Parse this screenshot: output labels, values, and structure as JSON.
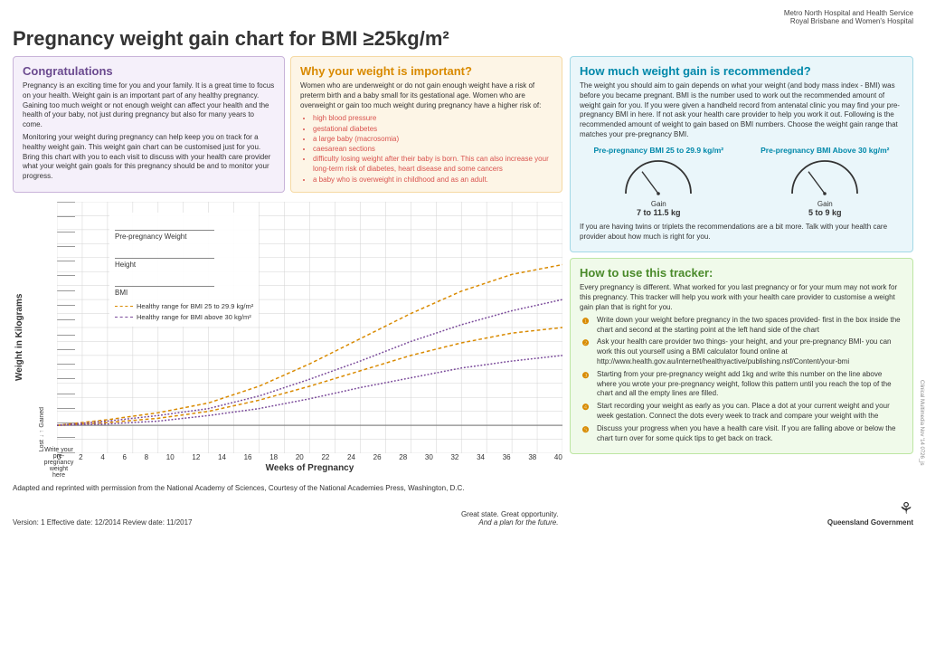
{
  "header": {
    "line1": "Metro North Hospital and Health Service",
    "line2": "Royal Brisbane and Women's Hospital"
  },
  "title": "Pregnancy weight gain chart for BMI ≥25kg/m²",
  "congrats": {
    "heading": "Congratulations",
    "p1": "Pregnancy is an exciting time for you and your family. It is a great time to focus on your health. Weight gain is an important part of any healthy pregnancy. Gaining too much weight or not enough weight can affect your health and the health of your baby, not just during pregnancy but also for many years to come.",
    "p2": "Monitoring your weight during pregnancy can help keep you on track for a healthy weight gain. This weight gain chart can be customised just for you. Bring this chart with you to each visit to discuss with your health care provider what your weight gain goals for this pregnancy should be and to monitor your progress."
  },
  "why": {
    "heading": "Why your weight is important?",
    "p1": "Women who are underweight or do not gain enough weight have a risk of preterm birth and a baby small for its gestational age. Women who are overweight or gain too much weight during pregnancy have a higher risk of:",
    "bullets": [
      "high blood pressure",
      "gestational diabetes",
      "a large baby (macrosomia)",
      "caesarean sections",
      "difficulty losing weight after their baby is born. This can also increase your long-term risk of diabetes, heart disease and some cancers",
      "a baby who is overweight in childhood and as an adult."
    ]
  },
  "howmuch": {
    "heading": "How much weight gain is recommended?",
    "p1": "The weight you should aim to gain depends on what your weight (and body mass index - BMI) was before you became pregnant. BMI is the number used to work out the recommended amount of weight gain for you. If you were given a handheld record from antenatal clinic you may find your pre-pregnancy BMI in here. If not ask your health care provider to help you work it out. Following is the recommended amount of weight to gain based on BMI numbers. Choose the weight gain range that matches your pre-pregnancy BMI.",
    "g1_title": "Pre-pregnancy BMI 25 to 29.9 kg/m²",
    "g1_gain": "Gain",
    "g1_range": "7 to 11.5 kg",
    "g2_title": "Pre-pregnancy BMI Above 30 kg/m²",
    "g2_gain": "Gain",
    "g2_range": "5 to 9 kg",
    "p2": "If you are having twins or triplets the recommendations are a bit more. Talk with your health care provider about how much is right for you."
  },
  "howuse": {
    "heading": "How to use this tracker:",
    "intro": "Every pregnancy is different. What worked for you last pregnancy or for your mum may not work for this pregnancy. This tracker will help you work with your health care provider to customise a weight gain plan that is right for you.",
    "s1": "Write down your weight before pregnancy in the two spaces provided- first in the box inside the chart and second at the starting point at the left hand side of the chart",
    "s2": "Ask your health care provider two things- your height, and your pre-pregnancy BMI- you can work this out yourself using a BMI calculator found online at http://www.health.gov.au/internet/healthyactive/publishing.nsf/Content/your-bmi",
    "s3": "Starting from your pre-pregnancy weight add 1kg and write this number on the line above where you wrote your pre-pregnancy weight, follow this pattern until you reach the top of the chart and all the empty lines are filled.",
    "s4": "Start recording your weight as early as you can. Place a dot at your current weight and your week gestation. Connect the dots every week to track and compare your weight with the",
    "s5": "Discuss your progress when you have a health care visit. If you are falling above or below the chart turn over for some quick tips to get back on track."
  },
  "chart": {
    "ylabel": "Weight in Kilograms",
    "xlabel": "Weeks of Pregnancy",
    "xticks": [
      0,
      2,
      4,
      6,
      8,
      10,
      12,
      14,
      16,
      18,
      20,
      22,
      24,
      26,
      28,
      30,
      32,
      34,
      36,
      38,
      40
    ],
    "legend_pre": "Pre-pregnancy Weight",
    "legend_h": "Height",
    "legend_bmi": "BMI",
    "key1": "Healthy range for BMI 25 to 29.9 kg/m²",
    "key1_color": "#d98a00",
    "key2": "Healthy range for BMI above 30 kg/m²",
    "key2_color": "#7a4a9a",
    "lost": "Lost",
    "gained": "Gained",
    "prelabel": "Write your pre-pregnancy weight here",
    "grid_color": "#d0d0d0",
    "curves": {
      "orange_upper": [
        [
          0,
          0
        ],
        [
          4,
          0.4
        ],
        [
          8,
          0.9
        ],
        [
          12,
          1.6
        ],
        [
          16,
          2.8
        ],
        [
          20,
          4.4
        ],
        [
          24,
          6.2
        ],
        [
          28,
          8.0
        ],
        [
          32,
          9.6
        ],
        [
          36,
          10.8
        ],
        [
          40,
          11.5
        ]
      ],
      "orange_lower": [
        [
          0,
          0
        ],
        [
          4,
          0.2
        ],
        [
          8,
          0.5
        ],
        [
          12,
          1.0
        ],
        [
          16,
          1.8
        ],
        [
          20,
          2.8
        ],
        [
          24,
          3.9
        ],
        [
          28,
          5.0
        ],
        [
          32,
          5.9
        ],
        [
          36,
          6.6
        ],
        [
          40,
          7.0
        ]
      ],
      "purple_upper": [
        [
          0,
          0
        ],
        [
          4,
          0.3
        ],
        [
          8,
          0.7
        ],
        [
          12,
          1.2
        ],
        [
          16,
          2.1
        ],
        [
          20,
          3.3
        ],
        [
          24,
          4.6
        ],
        [
          28,
          6.0
        ],
        [
          32,
          7.2
        ],
        [
          36,
          8.2
        ],
        [
          40,
          9.0
        ]
      ],
      "purple_lower": [
        [
          0,
          0
        ],
        [
          4,
          0.1
        ],
        [
          8,
          0.3
        ],
        [
          12,
          0.7
        ],
        [
          16,
          1.2
        ],
        [
          20,
          1.9
        ],
        [
          24,
          2.7
        ],
        [
          28,
          3.4
        ],
        [
          32,
          4.1
        ],
        [
          36,
          4.6
        ],
        [
          40,
          5.0
        ]
      ]
    },
    "xmax": 40,
    "ymin": -2,
    "ymax": 16
  },
  "footer": {
    "credit": "Adapted and reprinted with permission from the National Academy of Sciences, Courtesy of the National Academies Press, Washington, D.C.",
    "version": "Version: 1 Effective date: 12/2014 Review date: 11/2017",
    "tag1": "Great state. Great opportunity.",
    "tag2": "And a plan for the future.",
    "gov": "Queensland Government"
  },
  "sidetext": "Clinical Multimedia Nov '14 0726_js"
}
